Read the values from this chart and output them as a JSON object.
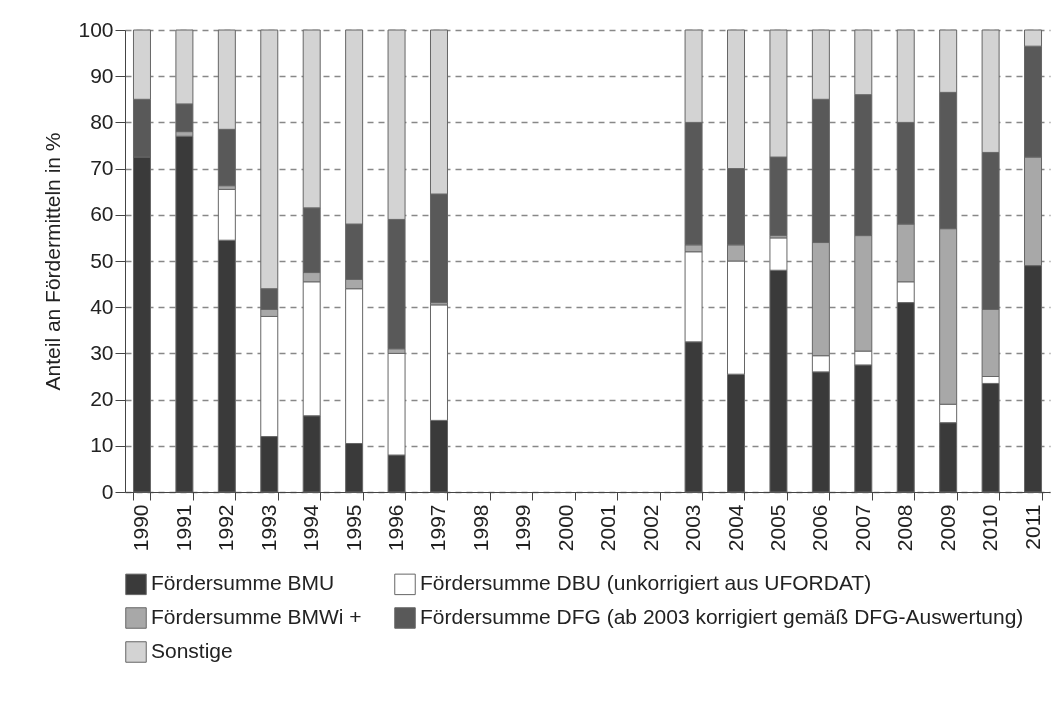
{
  "chart_data": {
    "type": "bar",
    "stacked": true,
    "ylabel": "Anteil an Fördermitteln in %",
    "categories": [
      "1990",
      "1991",
      "1992",
      "1993",
      "1994",
      "1995",
      "1996",
      "1997",
      "1998",
      "1999",
      "2000",
      "2001",
      "2002",
      "2003",
      "2004",
      "2005",
      "2006",
      "2007",
      "2008",
      "2009",
      "2010",
      "2011"
    ],
    "series": [
      {
        "name": "Fördersumme BMU",
        "color": "#3a3a3a",
        "values": [
          72.5,
          77,
          54.5,
          12,
          16.5,
          10.5,
          8,
          15.5,
          null,
          null,
          null,
          null,
          null,
          32.5,
          25.5,
          48,
          26,
          27.5,
          41,
          15,
          23.5,
          49
        ]
      },
      {
        "name": "Fördersumme DBU (unkorrigiert aus UFORDAT)",
        "color": "#ffffff",
        "values": [
          null,
          null,
          11,
          26,
          29,
          33.5,
          22,
          25,
          null,
          null,
          null,
          null,
          null,
          19.5,
          24.5,
          7,
          3.5,
          3,
          4.5,
          4,
          1.5,
          null
        ]
      },
      {
        "name": "Fördersumme BMWi +",
        "color": "#a8a8a8",
        "values": [
          null,
          1,
          0.8,
          1.5,
          2,
          2,
          1,
          0.5,
          null,
          null,
          null,
          null,
          null,
          1.5,
          3.5,
          0.5,
          24.5,
          25,
          12.5,
          38,
          14.5,
          23.5
        ]
      },
      {
        "name": "Fördersumme DFG (ab 2003 korrigiert gemäß DFG-Auswertung)",
        "color": "#595959",
        "values": [
          12.5,
          6,
          12.2,
          4.5,
          14,
          12,
          28,
          23.5,
          null,
          null,
          null,
          null,
          null,
          26.5,
          16.5,
          17,
          31,
          30.5,
          22,
          29.5,
          34,
          24
        ]
      },
      {
        "name": "Sonstige",
        "color": "#d3d3d3",
        "values": [
          15,
          16,
          21.5,
          56,
          38.5,
          42,
          41,
          35.5,
          null,
          null,
          null,
          null,
          null,
          20,
          30,
          27.5,
          15,
          14,
          20,
          13.5,
          26.5,
          3.5
        ]
      }
    ],
    "ylim": [
      0,
      100
    ],
    "yticks": [
      0,
      10,
      20,
      30,
      40,
      50,
      60,
      70,
      80,
      90,
      100
    ],
    "grid": "y",
    "legend": "bottom"
  }
}
